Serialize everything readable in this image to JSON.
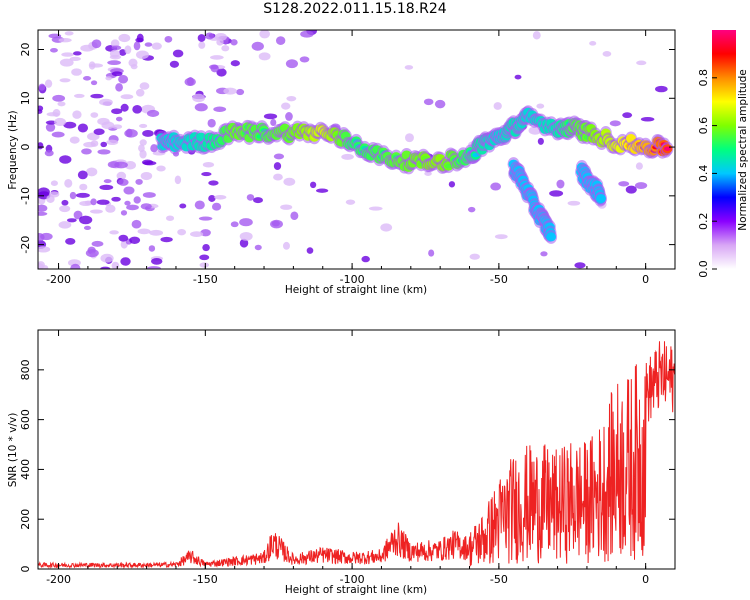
{
  "title": "S128.2022.011.15.18.R24",
  "chart_data": [
    {
      "type": "heatmap",
      "xlabel": "Height of straight line (km)",
      "ylabel": "Frequency (Hz)",
      "xlim": [
        -207,
        10
      ],
      "ylim": [
        -25,
        24
      ],
      "xticks": [
        -200,
        -150,
        -100,
        -50,
        0
      ],
      "yticks": [
        -20,
        -10,
        0,
        10,
        20
      ],
      "colorbar": {
        "label": "Normalized spectral amplitude",
        "range": [
          0,
          1
        ],
        "ticks": [
          0.0,
          0.2,
          0.4,
          0.6,
          0.8
        ],
        "colormap": [
          "#ffffff",
          "#d8a6f5",
          "#8a00ff",
          "#0000ff",
          "#00c8ff",
          "#00ff7f",
          "#7fff00",
          "#ffff00",
          "#ff8c00",
          "#ff0000",
          "#ff0080"
        ]
      },
      "ridge": {
        "height_km": [
          -165,
          -160,
          -150,
          -140,
          -130,
          -120,
          -110,
          -100,
          -90,
          -80,
          -70,
          -60,
          -55,
          -50,
          -45,
          -40,
          -30,
          -25,
          -20,
          -10,
          0,
          8
        ],
        "frequency_hz": [
          1,
          1,
          1,
          3,
          3,
          3,
          3,
          1,
          -2,
          -3,
          -3,
          -2,
          1,
          2,
          4,
          6,
          4,
          4,
          3,
          1,
          0,
          0
        ],
        "amplitude": [
          0.3,
          0.3,
          0.35,
          0.55,
          0.5,
          0.55,
          0.7,
          0.45,
          0.5,
          0.55,
          0.6,
          0.45,
          0.35,
          0.3,
          0.35,
          0.3,
          0.35,
          0.5,
          0.55,
          0.7,
          0.85,
          1.0
        ]
      },
      "branch": {
        "height_km": [
          -45,
          -42,
          -38,
          -35,
          -32
        ],
        "frequency_hz": [
          -4,
          -7,
          -12,
          -15,
          -18
        ]
      },
      "branch2": {
        "height_km": [
          -22,
          -18,
          -15
        ],
        "frequency_hz": [
          -5,
          -8,
          -10
        ]
      }
    },
    {
      "type": "line",
      "xlabel": "Height of straight line (km)",
      "ylabel": "SNR (10 * v/v)",
      "xlim": [
        -207,
        10
      ],
      "ylim": [
        0,
        960
      ],
      "xticks": [
        -200,
        -150,
        -100,
        -50,
        0
      ],
      "yticks": [
        0,
        200,
        400,
        600,
        800
      ],
      "color": "#ee2222",
      "series": [
        {
          "x": [
            -207,
            -190,
            -170,
            -160,
            -155,
            -150,
            -140,
            -130,
            -127,
            -120,
            -110,
            -100,
            -90,
            -85,
            -80,
            -70,
            -65,
            -60,
            -55,
            -50,
            -45,
            -40,
            -35,
            -30,
            -25,
            -20,
            -15,
            -10,
            -5,
            0,
            5,
            10
          ],
          "y": [
            25,
            25,
            25,
            28,
            80,
            30,
            50,
            70,
            170,
            60,
            90,
            70,
            80,
            200,
            110,
            120,
            160,
            130,
            200,
            310,
            390,
            420,
            420,
            400,
            440,
            430,
            500,
            640,
            660,
            760,
            840,
            820
          ]
        }
      ]
    }
  ]
}
